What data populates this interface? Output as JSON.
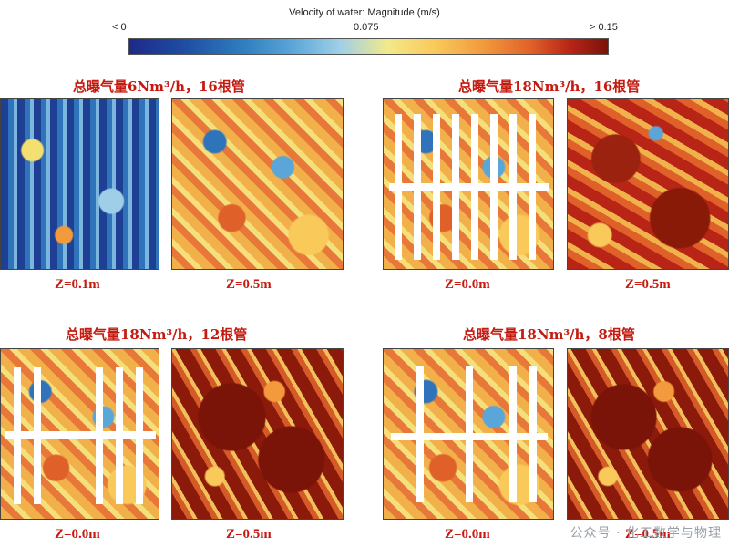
{
  "legend": {
    "title": "Velocity of water: Magnitude (m/s)",
    "min_label": "< 0",
    "mid_label": "0.075",
    "max_label": "> 0.15"
  },
  "groups": [
    {
      "title": "总曝气量6Nm³/h，16根管",
      "left_label": "Z=0.1m",
      "right_label": "Z=0.5m"
    },
    {
      "title": "总曝气量18Nm³/h，16根管",
      "left_label": "Z=0.0m",
      "right_label": "Z=0.5m"
    },
    {
      "title": "总曝气量18Nm³/h，12根管",
      "left_label": "Z=0.0m",
      "right_label": "Z=0.5m"
    },
    {
      "title": "总曝气量18Nm³/h，8根管",
      "left_label": "Z=0.0m",
      "right_label": "Z=0.5m"
    }
  ],
  "watermark": "公众号 · 化工数学与物理"
}
